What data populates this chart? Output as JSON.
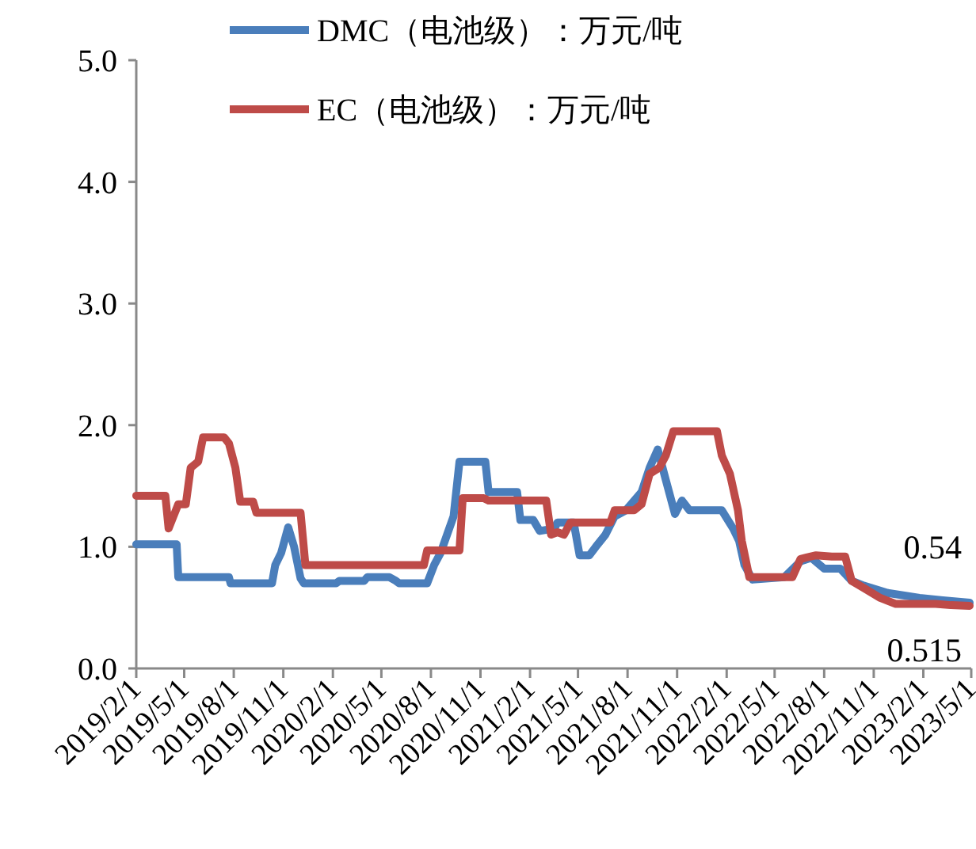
{
  "chart_data": {
    "type": "line",
    "xlim": [
      "2019-02-01",
      "2023-05-01"
    ],
    "xticks": [
      {
        "value": "2019-02-01",
        "label": "2019/2/1"
      },
      {
        "value": "2019-05-01",
        "label": "2019/5/1"
      },
      {
        "value": "2019-08-01",
        "label": "2019/8/1"
      },
      {
        "value": "2019-11-01",
        "label": "2019/11/1"
      },
      {
        "value": "2020-02-01",
        "label": "2020/2/1"
      },
      {
        "value": "2020-05-01",
        "label": "2020/5/1"
      },
      {
        "value": "2020-08-01",
        "label": "2020/8/1"
      },
      {
        "value": "2020-11-01",
        "label": "2020/11/1"
      },
      {
        "value": "2021-02-01",
        "label": "2021/2/1"
      },
      {
        "value": "2021-05-01",
        "label": "2021/5/1"
      },
      {
        "value": "2021-08-01",
        "label": "2021/8/1"
      },
      {
        "value": "2021-11-01",
        "label": "2021/11/1"
      },
      {
        "value": "2022-02-01",
        "label": "2022/2/1"
      },
      {
        "value": "2022-05-01",
        "label": "2022/5/1"
      },
      {
        "value": "2022-08-01",
        "label": "2022/8/1"
      },
      {
        "value": "2022-11-01",
        "label": "2022/11/1"
      },
      {
        "value": "2023-02-01",
        "label": "2023/2/1"
      },
      {
        "value": "2023-05-01",
        "label": "2023/5/1"
      }
    ],
    "ylim": [
      0,
      5
    ],
    "yticks": [
      {
        "value": 0,
        "label": "0.0"
      },
      {
        "value": 1,
        "label": "1.0"
      },
      {
        "value": 2,
        "label": "2.0"
      },
      {
        "value": 3,
        "label": "3.0"
      },
      {
        "value": 4,
        "label": "4.0"
      },
      {
        "value": 5,
        "label": "5.0"
      }
    ],
    "grid": false,
    "legend": "top",
    "line_style": "solid",
    "annotations": [
      {
        "text": "0.54",
        "x": "2023-04-28",
        "y": 0.54
      },
      {
        "text": "0.515",
        "x": "2023-04-28",
        "y": 0.515
      }
    ],
    "series": [
      {
        "name": "DMC（电池级）：万元/吨",
        "color": "#4a7ebb",
        "x": [
          "2019-02-01",
          "2019-04-17",
          "2019-04-20",
          "2019-07-23",
          "2019-07-26",
          "2019-10-11",
          "2019-10-17",
          "2019-10-28",
          "2019-11-10",
          "2019-11-21",
          "2019-12-03",
          "2019-12-09",
          "2020-02-07",
          "2020-02-13",
          "2020-03-30",
          "2020-04-05",
          "2020-05-16",
          "2020-05-28",
          "2020-06-03",
          "2020-07-25",
          "2020-08-07",
          "2020-08-19",
          "2020-08-31",
          "2020-09-12",
          "2020-09-23",
          "2020-11-10",
          "2020-11-16",
          "2021-01-08",
          "2021-01-14",
          "2021-02-07",
          "2021-02-19",
          "2021-03-18",
          "2021-03-24",
          "2021-04-23",
          "2021-05-04",
          "2021-05-22",
          "2021-06-03",
          "2021-06-21",
          "2021-07-08",
          "2021-07-29",
          "2021-08-27",
          "2021-09-11",
          "2021-09-26",
          "2021-10-11",
          "2021-10-28",
          "2021-11-10",
          "2021-11-24",
          "2022-01-23",
          "2022-02-13",
          "2022-02-24",
          "2022-03-06",
          "2022-03-21",
          "2022-05-19",
          "2022-06-18",
          "2022-07-08",
          "2022-08-01",
          "2022-08-31",
          "2022-09-21",
          "2022-10-14",
          "2022-11-27",
          "2023-01-25",
          "2023-03-09",
          "2023-04-28"
        ],
        "values": [
          1.02,
          1.02,
          0.75,
          0.75,
          0.7,
          0.7,
          0.85,
          0.95,
          1.16,
          1.0,
          0.74,
          0.7,
          0.7,
          0.72,
          0.72,
          0.75,
          0.75,
          0.72,
          0.7,
          0.7,
          0.85,
          0.95,
          1.1,
          1.25,
          1.7,
          1.7,
          1.45,
          1.45,
          1.22,
          1.22,
          1.13,
          1.15,
          1.2,
          1.2,
          0.93,
          0.93,
          1.0,
          1.1,
          1.25,
          1.3,
          1.45,
          1.65,
          1.8,
          1.55,
          1.27,
          1.38,
          1.3,
          1.3,
          1.15,
          1.05,
          0.85,
          0.73,
          0.75,
          0.88,
          0.91,
          0.82,
          0.82,
          0.72,
          0.68,
          0.62,
          0.58,
          0.56,
          0.54
        ]
      },
      {
        "name": "EC（电池级）：万元/吨",
        "color": "#be4b48",
        "x": [
          "2019-02-01",
          "2019-03-27",
          "2019-04-02",
          "2019-04-11",
          "2019-04-20",
          "2019-05-04",
          "2019-05-13",
          "2019-05-27",
          "2019-06-05",
          "2019-07-14",
          "2019-07-23",
          "2019-08-04",
          "2019-08-13",
          "2019-09-06",
          "2019-09-12",
          "2019-12-03",
          "2019-12-12",
          "2020-07-19",
          "2020-07-25",
          "2020-09-23",
          "2020-09-29",
          "2020-11-07",
          "2020-11-16",
          "2021-03-03",
          "2021-03-12",
          "2021-03-24",
          "2021-04-05",
          "2021-04-17",
          "2021-06-30",
          "2021-07-08",
          "2021-08-13",
          "2021-08-27",
          "2021-09-11",
          "2021-09-29",
          "2021-10-11",
          "2021-10-25",
          "2022-01-14",
          "2022-01-23",
          "2022-02-07",
          "2022-02-22",
          "2022-03-01",
          "2022-03-15",
          "2022-06-03",
          "2022-06-18",
          "2022-07-17",
          "2022-08-15",
          "2022-09-09",
          "2022-09-21",
          "2022-10-14",
          "2022-11-13",
          "2022-12-12",
          "2023-02-24",
          "2023-03-24",
          "2023-04-28"
        ],
        "values": [
          1.42,
          1.42,
          1.15,
          1.25,
          1.35,
          1.35,
          1.65,
          1.7,
          1.9,
          1.9,
          1.85,
          1.65,
          1.37,
          1.37,
          1.28,
          1.28,
          0.85,
          0.85,
          0.97,
          0.97,
          1.4,
          1.4,
          1.38,
          1.38,
          1.1,
          1.12,
          1.1,
          1.2,
          1.2,
          1.3,
          1.3,
          1.35,
          1.6,
          1.65,
          1.75,
          1.95,
          1.95,
          1.75,
          1.6,
          1.3,
          1.05,
          0.75,
          0.75,
          0.9,
          0.93,
          0.92,
          0.92,
          0.72,
          0.66,
          0.58,
          0.53,
          0.53,
          0.52,
          0.515
        ]
      }
    ]
  }
}
